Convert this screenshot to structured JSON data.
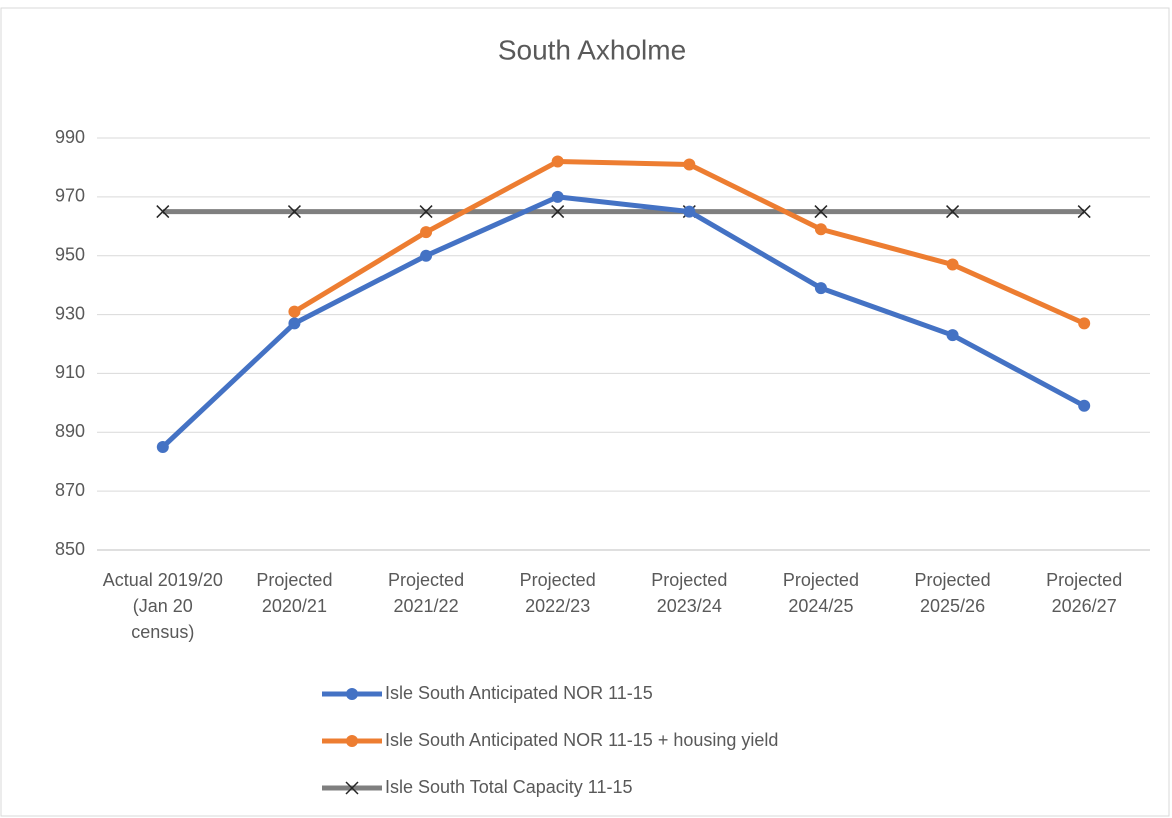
{
  "chart_data": {
    "type": "line",
    "title": "South Axholme",
    "categories": [
      "Actual 2019/20 (Jan 20 census)",
      "Projected 2020/21",
      "Projected 2021/22",
      "Projected 2022/23",
      "Projected 2023/24",
      "Projected 2024/25",
      "Projected 2025/26",
      "Projected 2026/27"
    ],
    "series": [
      {
        "name": "Isle South Anticipated NOR 11-15",
        "color": "#4472c4",
        "marker": "circle",
        "values": [
          885,
          927,
          950,
          970,
          965,
          939,
          923,
          899
        ]
      },
      {
        "name": "Isle South Anticipated NOR 11-15 + housing yield",
        "color": "#ed7d31",
        "marker": "circle",
        "values": [
          null,
          931,
          958,
          982,
          981,
          959,
          947,
          927
        ]
      },
      {
        "name": "Isle South Total Capacity 11-15",
        "color": "#7f7f7f",
        "marker": "x",
        "values": [
          965,
          965,
          965,
          965,
          965,
          965,
          965,
          965
        ]
      }
    ],
    "ylim": [
      850,
      990
    ],
    "yticks": [
      850,
      870,
      890,
      910,
      930,
      950,
      970,
      990
    ],
    "grid": true,
    "legend": "bottom"
  }
}
